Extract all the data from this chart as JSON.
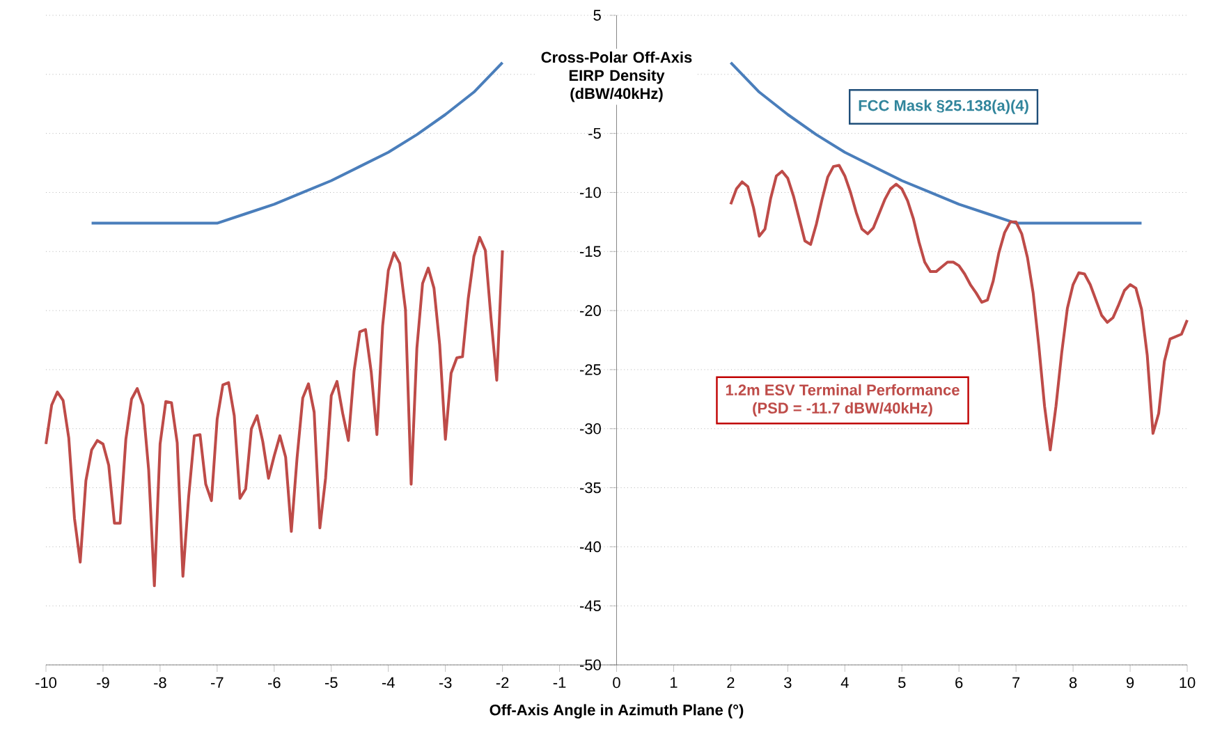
{
  "chart_data": {
    "type": "line",
    "xlabel": "Off-Axis Angle in Azimuth Plane (°)",
    "ylabel": "Cross-Polar Off-Axis EIRP Density (dBW/40kHz)",
    "xlim": [
      -10,
      10
    ],
    "ylim": [
      -50,
      5
    ],
    "xticks": [
      -10,
      -9,
      -8,
      -7,
      -6,
      -5,
      -4,
      -3,
      -2,
      -1,
      0,
      1,
      2,
      3,
      4,
      5,
      6,
      7,
      8,
      9,
      10
    ],
    "yticks": [
      -50,
      -45,
      -40,
      -35,
      -30,
      -25,
      -20,
      -15,
      -10,
      -5,
      {
        "value": 0,
        "label": null
      },
      5
    ],
    "grid": "y",
    "annotations": [
      "(PSD = -11.7 dBW/40kHz)"
    ],
    "series": [
      {
        "name": "FCC Mask §25.138(a)(4)",
        "color": "#4a7ebb",
        "x": [
          -9.2,
          -7,
          -6.5,
          -6,
          -5.5,
          -5,
          -4.5,
          -4,
          -3.5,
          -3,
          -2.5,
          -2,
          0,
          2,
          2.5,
          3,
          3.5,
          4,
          4.5,
          5,
          5.5,
          6,
          6.5,
          7,
          9.2
        ],
        "values": [
          -12.6,
          -12.6,
          -11.8,
          -11.0,
          -10.0,
          -9.0,
          -7.8,
          -6.6,
          -5.1,
          -3.4,
          -1.5,
          1.0,
          null,
          1.0,
          -1.5,
          -3.4,
          -5.1,
          -6.6,
          -7.8,
          -9.0,
          -10.0,
          -11.0,
          -11.8,
          -12.6,
          -12.6
        ]
      },
      {
        "name": "1.2m ESV Terminal Performance",
        "color": "#be4b48",
        "x": [
          -10,
          -9.9,
          -9.8,
          -9.7,
          -9.6,
          -9.5,
          -9.4,
          -9.3,
          -9.2,
          -9.1,
          -9,
          -8.9,
          -8.8,
          -8.7,
          -8.6,
          -8.5,
          -8.4,
          -8.3,
          -8.2,
          -8.1,
          -8,
          -7.9,
          -7.8,
          -7.7,
          -7.6,
          -7.5,
          -7.4,
          -7.3,
          -7.2,
          -7.1,
          -7,
          -6.9,
          -6.8,
          -6.7,
          -6.6,
          -6.5,
          -6.4,
          -6.3,
          -6.2,
          -6.1,
          -6,
          -5.9,
          -5.8,
          -5.7,
          -5.6,
          -5.5,
          -5.4,
          -5.3,
          -5.2,
          -5.1,
          -5,
          -4.9,
          -4.8,
          -4.7,
          -4.6,
          -4.5,
          -4.4,
          -4.3,
          -4.2,
          -4.1,
          -4,
          -3.9,
          -3.8,
          -3.7,
          -3.6,
          -3.5,
          -3.4,
          -3.3,
          -3.2,
          -3.1,
          -3,
          -2.9,
          -2.8,
          -2.7,
          -2.6,
          -2.5,
          -2.4,
          -2.3,
          -2.2,
          -2.1,
          -2,
          0,
          2,
          2.1,
          2.2,
          2.3,
          2.4,
          2.5,
          2.6,
          2.7,
          2.8,
          2.9,
          3,
          3.1,
          3.2,
          3.3,
          3.4,
          3.5,
          3.6,
          3.7,
          3.8,
          3.9,
          4,
          4.1,
          4.2,
          4.3,
          4.4,
          4.5,
          4.6,
          4.7,
          4.8,
          4.9,
          5,
          5.1,
          5.2,
          5.3,
          5.4,
          5.5,
          5.6,
          5.7,
          5.8,
          5.9,
          6,
          6.1,
          6.2,
          6.3,
          6.4,
          6.5,
          6.6,
          6.7,
          6.8,
          6.9,
          7,
          7.1,
          7.2,
          7.3,
          7.4,
          7.5,
          7.6,
          7.7,
          7.8,
          7.9,
          8,
          8.1,
          8.2,
          8.3,
          8.4,
          8.5,
          8.6,
          8.7,
          8.8,
          8.9,
          9,
          9.1,
          9.2,
          9.3,
          9.4,
          9.5,
          9.6,
          9.7,
          9.8,
          9.9,
          10
        ],
        "values": [
          -31.3,
          -28.0,
          -26.9,
          -27.6,
          -30.8,
          -37.6,
          -41.3,
          -34.4,
          -31.8,
          -31.0,
          -31.3,
          -33.1,
          -38.0,
          -38.0,
          -30.9,
          -27.5,
          -26.6,
          -28.0,
          -33.5,
          -43.3,
          -31.3,
          -27.7,
          -27.8,
          -31.2,
          -42.5,
          -35.8,
          -30.6,
          -30.5,
          -34.7,
          -36.1,
          -29.2,
          -26.3,
          -26.1,
          -28.9,
          -35.9,
          -35.1,
          -30.0,
          -28.9,
          -31.1,
          -34.2,
          -32.3,
          -30.6,
          -32.4,
          -38.7,
          -32.5,
          -27.4,
          -26.2,
          -28.6,
          -38.4,
          -34.2,
          -27.2,
          -26.0,
          -28.7,
          -31.0,
          -25.1,
          -21.8,
          -21.6,
          -25.2,
          -30.5,
          -21.3,
          -16.6,
          -15.1,
          -16.0,
          -19.9,
          -34.7,
          -23.2,
          -17.7,
          -16.4,
          -18.1,
          -22.9,
          -30.9,
          -25.3,
          -24.0,
          -23.9,
          -19.0,
          -15.4,
          -13.8,
          -14.9,
          -20.7,
          -25.9,
          -14.9,
          null,
          -11.0,
          -9.7,
          -9.1,
          -9.5,
          -11.3,
          -13.7,
          -13.1,
          -10.5,
          -8.6,
          -8.2,
          -8.8,
          -10.3,
          -12.2,
          -14.1,
          -14.4,
          -12.7,
          -10.6,
          -8.7,
          -7.8,
          -7.7,
          -8.6,
          -10.0,
          -11.7,
          -13.1,
          -13.5,
          -13.0,
          -11.8,
          -10.6,
          -9.7,
          -9.3,
          -9.7,
          -10.7,
          -12.2,
          -14.2,
          -15.9,
          -16.7,
          -16.7,
          -16.3,
          -15.9,
          -15.9,
          -16.2,
          -16.9,
          -17.8,
          -18.5,
          -19.3,
          -19.1,
          -17.5,
          -15.1,
          -13.4,
          -12.5,
          -12.5,
          -13.5,
          -15.5,
          -18.5,
          -23.0,
          -28.1,
          -31.8,
          -28.1,
          -23.6,
          -19.8,
          -17.8,
          -16.8,
          -16.9,
          -17.8,
          -19.1,
          -20.4,
          -21.0,
          -20.6,
          -19.5,
          -18.3,
          -17.8,
          -18.1,
          -19.9,
          -23.8,
          -30.4,
          -28.7,
          -24.3,
          -22.4,
          -22.2,
          -22.0,
          -20.8
        ]
      }
    ]
  }
}
